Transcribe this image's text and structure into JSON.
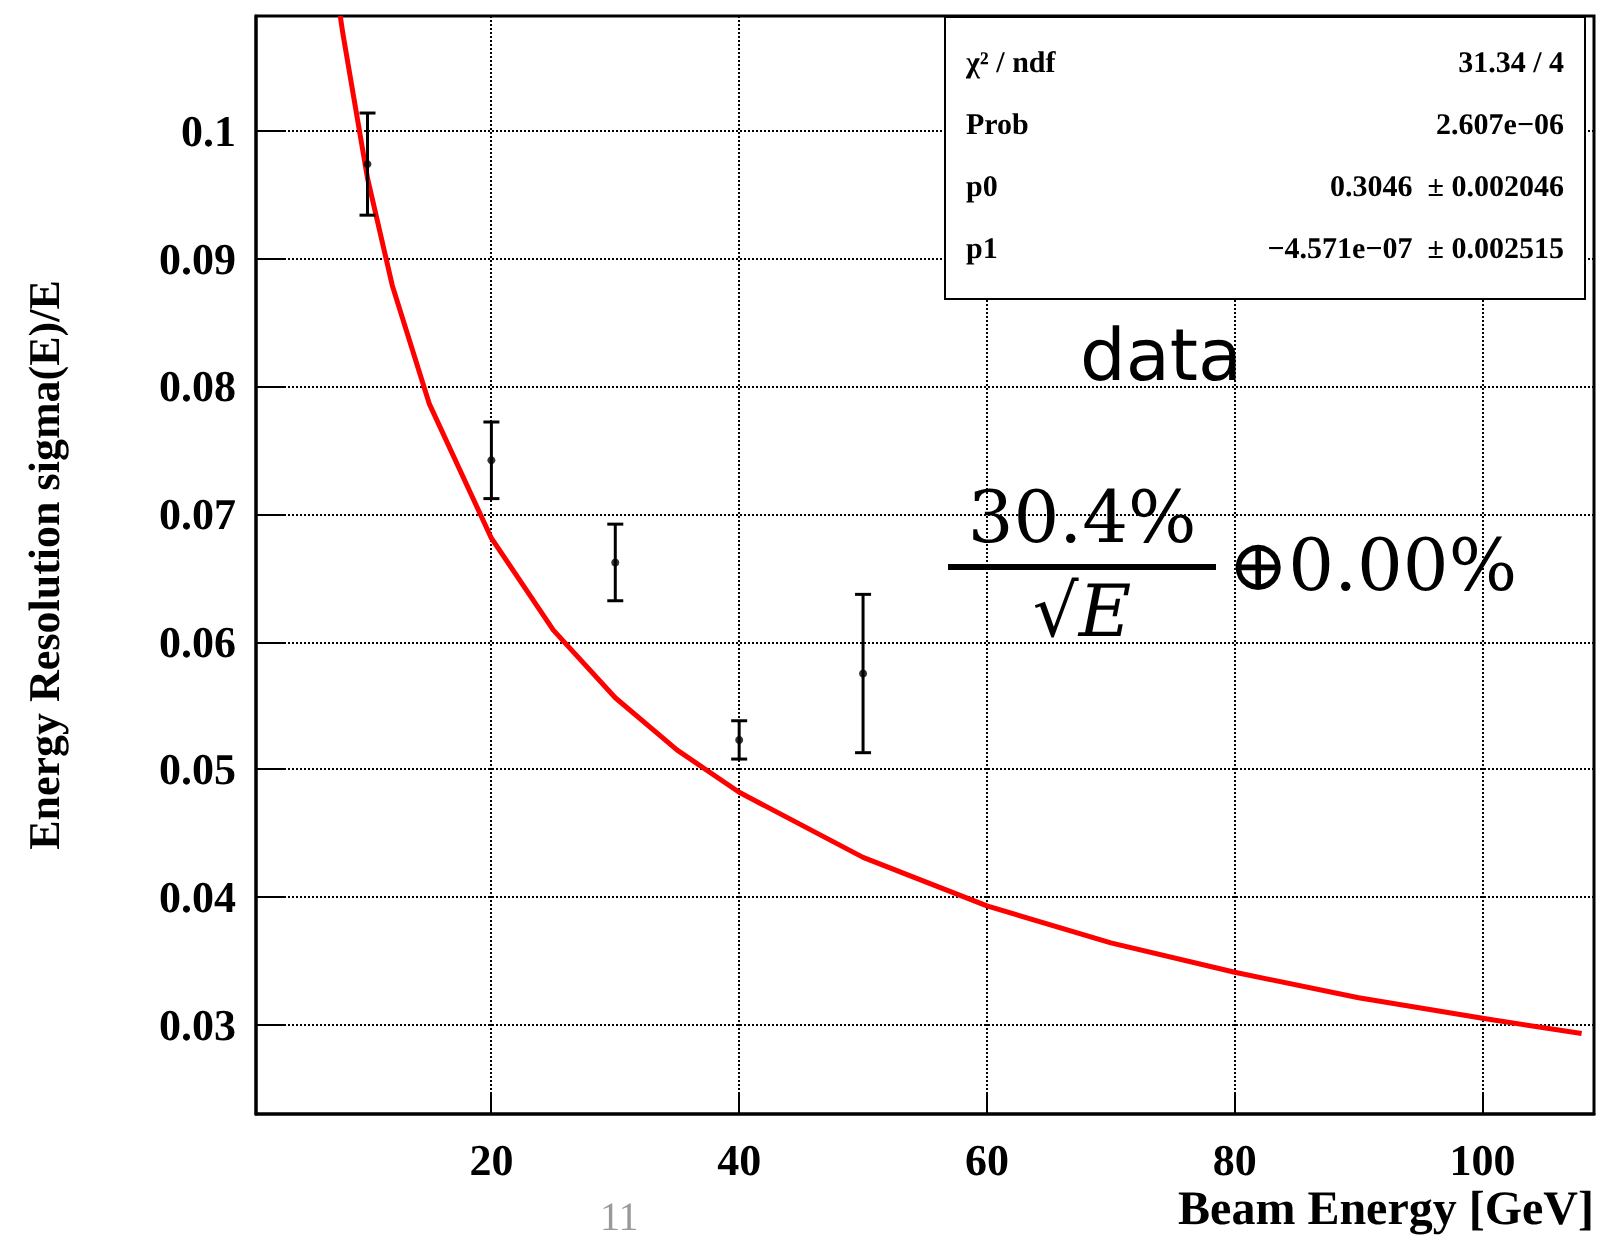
{
  "chart_data": {
    "type": "scatter",
    "xlabel": "Beam Energy [GeV]",
    "ylabel": "Energy Resolution sigma(E)/E",
    "xlim": [
      1,
      109
    ],
    "ylim": [
      0.023,
      0.109
    ],
    "xticks": [
      20,
      40,
      60,
      80,
      100
    ],
    "yticks": [
      0.03,
      0.04,
      0.05,
      0.06,
      0.07,
      0.08,
      0.09,
      0.1
    ],
    "grid": true,
    "series": [
      {
        "color": "#000000",
        "x": [
          10,
          20,
          30,
          40,
          50
        ],
        "values": [
          0.0974,
          0.0742,
          0.0662,
          0.0523,
          0.0575
        ],
        "errors": [
          0.004,
          0.003,
          0.003,
          0.0015,
          0.0062
        ]
      },
      {
        "type": "line",
        "color": "#ff0000",
        "x": [
          7.8,
          8,
          10,
          12,
          15,
          20,
          25,
          30,
          35,
          40,
          50,
          60,
          70,
          80,
          90,
          100,
          108
        ],
        "values": [
          0.109,
          0.1077,
          0.0963,
          0.0879,
          0.0786,
          0.0681,
          0.0609,
          0.0556,
          0.0515,
          0.0482,
          0.0431,
          0.0393,
          0.0364,
          0.0341,
          0.0321,
          0.0305,
          0.0293
        ]
      }
    ],
    "annotations": [
      "χ² / ndf",
      "31.34 / 4",
      "Prob",
      "2.607e−06",
      "p0",
      "0.3046  ± 0.002046",
      "p1",
      "−4.571e−07  ± 0.002515",
      "data",
      "30.4%",
      "√E",
      "⊕0.00%",
      "11"
    ]
  }
}
